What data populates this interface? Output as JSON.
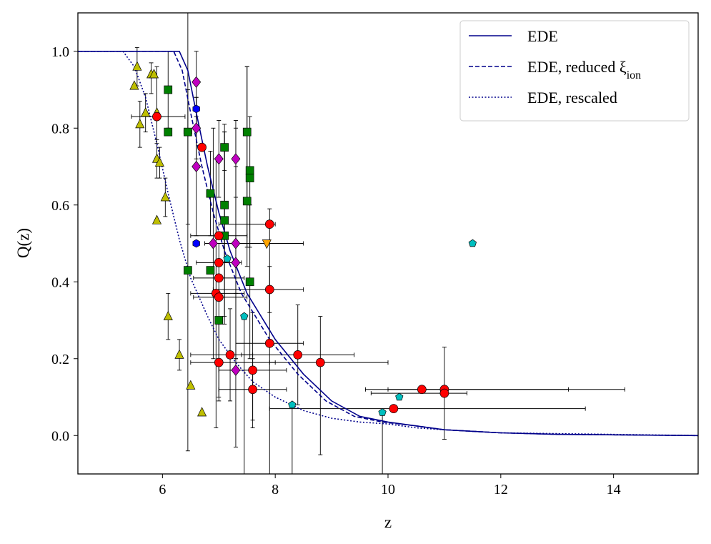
{
  "chart_data": {
    "type": "scatter",
    "xlabel": "z",
    "ylabel": "Q(z)",
    "xlim": [
      4.5,
      15.5
    ],
    "ylim": [
      -0.1,
      1.1
    ],
    "xticks": [
      "6",
      "8",
      "10",
      "12",
      "14"
    ],
    "yticks": [
      "0.0",
      "0.2",
      "0.4",
      "0.6",
      "0.8",
      "1.0"
    ],
    "grid": false,
    "legend_position": "top-right",
    "colors": {
      "line": "#00008b",
      "red": "#ff0000",
      "green": "#008000",
      "magenta": "#c000c0",
      "olive": "#bfbf00",
      "cyan": "#00bfbf",
      "blue": "#0000ff",
      "orange": "#ffa500"
    },
    "legend": [
      {
        "label": "EDE",
        "style": "solid"
      },
      {
        "label": "EDE, reduced ξ",
        "sub": "ion",
        "style": "dashed"
      },
      {
        "label": "EDE, rescaled",
        "style": "dotted"
      }
    ],
    "lines": [
      {
        "name": "EDE",
        "style": "solid",
        "x": [
          4.5,
          6.3,
          6.45,
          6.6,
          6.8,
          7.0,
          7.2,
          7.5,
          8.0,
          8.5,
          9.0,
          9.5,
          10.0,
          10.5,
          11.0,
          12.0,
          13.0,
          15.5
        ],
        "y": [
          1.0,
          1.0,
          0.95,
          0.84,
          0.7,
          0.58,
          0.48,
          0.37,
          0.25,
          0.16,
          0.09,
          0.05,
          0.035,
          0.025,
          0.015,
          0.007,
          0.003,
          0.0
        ]
      },
      {
        "name": "EDE, reduced ξ_ion",
        "style": "dashed",
        "x": [
          4.5,
          6.2,
          6.35,
          6.5,
          6.7,
          6.9,
          7.1,
          7.4,
          7.9,
          8.4,
          8.9,
          9.4,
          9.9,
          10.5,
          11.0,
          12.0,
          13.0,
          15.5
        ],
        "y": [
          1.0,
          1.0,
          0.95,
          0.84,
          0.7,
          0.58,
          0.48,
          0.37,
          0.25,
          0.16,
          0.09,
          0.05,
          0.035,
          0.025,
          0.015,
          0.007,
          0.003,
          0.0
        ]
      },
      {
        "name": "EDE, rescaled",
        "style": "dotted",
        "x": [
          4.5,
          5.3,
          5.5,
          5.7,
          5.9,
          6.1,
          6.3,
          6.5,
          6.8,
          7.0,
          7.3,
          7.6,
          8.0,
          8.5,
          9.0,
          9.5,
          10.0,
          10.5,
          11.0,
          12.0,
          15.5
        ],
        "y": [
          1.0,
          1.0,
          0.96,
          0.88,
          0.76,
          0.63,
          0.51,
          0.41,
          0.31,
          0.25,
          0.19,
          0.14,
          0.1,
          0.065,
          0.045,
          0.035,
          0.03,
          0.02,
          0.015,
          0.007,
          0.0
        ]
      }
    ],
    "points": [
      {
        "m": "tri",
        "c": "olive",
        "x": 5.5,
        "y": 0.91
      },
      {
        "m": "tri",
        "c": "olive",
        "x": 5.55,
        "y": 0.96,
        "ey": [
          0.05,
          0.05
        ]
      },
      {
        "m": "tri",
        "c": "olive",
        "x": 5.6,
        "y": 0.81,
        "ey": [
          0.06,
          0.06
        ]
      },
      {
        "m": "tri",
        "c": "olive",
        "x": 5.7,
        "y": 0.84,
        "ey": [
          0.05,
          0.05
        ]
      },
      {
        "m": "tri",
        "c": "olive",
        "x": 5.8,
        "y": 0.94,
        "ey": [
          0.05,
          0.03
        ]
      },
      {
        "m": "tri",
        "c": "olive",
        "x": 5.85,
        "y": 0.94
      },
      {
        "m": "tri",
        "c": "olive",
        "x": 5.9,
        "y": 0.72,
        "ey": [
          0.05,
          0.05
        ]
      },
      {
        "m": "tri",
        "c": "olive",
        "x": 5.9,
        "y": 0.56
      },
      {
        "m": "tri",
        "c": "olive",
        "x": 5.95,
        "y": 0.71,
        "ey": [
          0.04,
          0.04
        ]
      },
      {
        "m": "tri",
        "c": "olive",
        "x": 6.05,
        "y": 0.62,
        "ey": [
          0.05,
          0.05
        ]
      },
      {
        "m": "tri",
        "c": "olive",
        "x": 6.1,
        "y": 0.31,
        "ey": [
          0.06,
          0.06
        ]
      },
      {
        "m": "tri",
        "c": "olive",
        "x": 6.3,
        "y": 0.21,
        "ey": [
          0.04,
          0.04
        ]
      },
      {
        "m": "tri",
        "c": "olive",
        "x": 6.5,
        "y": 0.13
      },
      {
        "m": "tri",
        "c": "olive",
        "x": 6.7,
        "y": 0.06
      },
      {
        "m": "tri",
        "c": "olive",
        "x": 5.9,
        "y": 0.84,
        "ey": [
          0.08,
          0.12
        ]
      },
      {
        "m": "sq",
        "c": "green",
        "x": 6.1,
        "y": 0.9,
        "ey": [
          0.1,
          0.1
        ]
      },
      {
        "m": "sq",
        "c": "green",
        "x": 6.1,
        "y": 0.79
      },
      {
        "m": "sq",
        "c": "green",
        "x": 6.45,
        "y": 0.79,
        "ex": [
          0.07,
          0.07
        ],
        "ey": [
          0.24,
          0.31
        ]
      },
      {
        "m": "sq",
        "c": "green",
        "x": 6.45,
        "y": 0.43,
        "ey": [
          0.47,
          0.47
        ]
      },
      {
        "m": "sq",
        "c": "green",
        "x": 6.85,
        "y": 0.63,
        "ey": [
          0.11,
          0.11
        ]
      },
      {
        "m": "sq",
        "c": "green",
        "x": 6.85,
        "y": 0.43
      },
      {
        "m": "sq",
        "c": "green",
        "x": 7.0,
        "y": 0.3,
        "ey": [
          0.2,
          0.2
        ]
      },
      {
        "m": "sq",
        "c": "green",
        "x": 7.1,
        "y": 0.75,
        "ey": [
          0.06,
          0.06
        ]
      },
      {
        "m": "sq",
        "c": "green",
        "x": 7.1,
        "y": 0.6,
        "ey": [
          0.15,
          0.15
        ]
      },
      {
        "m": "sq",
        "c": "green",
        "x": 7.1,
        "y": 0.56,
        "ey": [
          0.25,
          0.23
        ]
      },
      {
        "m": "sq",
        "c": "green",
        "x": 7.1,
        "y": 0.52,
        "ey": [
          0.23,
          0.27
        ]
      },
      {
        "m": "sq",
        "c": "green",
        "x": 7.5,
        "y": 0.79,
        "ey": [
          0.3,
          0.17
        ]
      },
      {
        "m": "sq",
        "c": "green",
        "x": 7.5,
        "y": 0.61,
        "ey": [
          0.17,
          0.35
        ]
      },
      {
        "m": "sq",
        "c": "green",
        "x": 7.55,
        "y": 0.69,
        "ey": [
          0.2,
          0.14
        ]
      },
      {
        "m": "sq",
        "c": "green",
        "x": 7.55,
        "y": 0.67
      },
      {
        "m": "sq",
        "c": "green",
        "x": 7.55,
        "y": 0.4,
        "ey": [
          0.2,
          0.2
        ]
      },
      {
        "m": "dia",
        "c": "magenta",
        "x": 6.6,
        "y": 0.92,
        "ey": [
          0.09,
          0.08
        ]
      },
      {
        "m": "dia",
        "c": "magenta",
        "x": 6.6,
        "y": 0.8,
        "ey": [
          0.08,
          0.08
        ]
      },
      {
        "m": "dia",
        "c": "magenta",
        "x": 6.6,
        "y": 0.7,
        "ey": [
          0.18,
          0.18
        ]
      },
      {
        "m": "dia",
        "c": "magenta",
        "x": 6.9,
        "y": 0.5,
        "ey": [
          0.3,
          0.3
        ]
      },
      {
        "m": "dia",
        "c": "magenta",
        "x": 7.0,
        "y": 0.72,
        "ey": [
          0.1,
          0.1
        ]
      },
      {
        "m": "dia",
        "c": "magenta",
        "x": 7.3,
        "y": 0.72,
        "ey": [
          0.1,
          0.1
        ]
      },
      {
        "m": "dia",
        "c": "magenta",
        "x": 7.3,
        "y": 0.5,
        "ey": [
          0.3,
          0.3
        ]
      },
      {
        "m": "dia",
        "c": "magenta",
        "x": 7.3,
        "y": 0.45,
        "ey": [
          0.25,
          0.25
        ]
      },
      {
        "m": "dia",
        "c": "magenta",
        "x": 7.3,
        "y": 0.17,
        "ey": [
          0.2,
          0.2
        ]
      },
      {
        "m": "circ",
        "c": "red",
        "x": 5.9,
        "y": 0.83,
        "ex": [
          0.45,
          0.5
        ]
      },
      {
        "m": "circ",
        "c": "red",
        "x": 6.7,
        "y": 0.75
      },
      {
        "m": "circ",
        "c": "red",
        "x": 6.95,
        "y": 0.37,
        "ex": [
          0.45,
          0.5
        ],
        "ey": [
          0.35,
          0.35
        ]
      },
      {
        "m": "circ",
        "c": "red",
        "x": 7.0,
        "y": 0.52,
        "ex": [
          0.5,
          0.5
        ]
      },
      {
        "m": "circ",
        "c": "red",
        "x": 7.0,
        "y": 0.45,
        "ex": [
          0.4,
          0.4
        ]
      },
      {
        "m": "circ",
        "c": "red",
        "x": 7.0,
        "y": 0.41,
        "ex": [
          0.45,
          0.45
        ]
      },
      {
        "m": "circ",
        "c": "red",
        "x": 7.0,
        "y": 0.36,
        "ex": [
          0.45,
          0.5
        ]
      },
      {
        "m": "circ",
        "c": "red",
        "x": 7.0,
        "y": 0.19,
        "ex": [
          0.5,
          1.0
        ],
        "ey": [
          0.1,
          0.1
        ]
      },
      {
        "m": "circ",
        "c": "red",
        "x": 7.2,
        "y": 0.21,
        "ex": [
          0.7,
          0.4
        ],
        "ey": [
          0.12,
          0.12
        ]
      },
      {
        "m": "circ",
        "c": "red",
        "x": 7.6,
        "y": 0.17,
        "ex": [
          0.6,
          0.6
        ],
        "ey": [
          0.15,
          0.15
        ]
      },
      {
        "m": "circ",
        "c": "red",
        "x": 7.6,
        "y": 0.12,
        "ex": [
          0.6,
          0.6
        ],
        "ey": [
          0.08,
          0.08
        ]
      },
      {
        "m": "circ",
        "c": "red",
        "x": 7.9,
        "y": 0.55,
        "ex": [
          0.9,
          0.1
        ]
      },
      {
        "m": "circ",
        "c": "red",
        "x": 7.9,
        "y": 0.38,
        "ex": [
          1.0,
          0.6
        ],
        "ey": [
          0.06,
          0.06
        ]
      },
      {
        "m": "circ",
        "c": "red",
        "x": 7.9,
        "y": 0.24,
        "ex": [
          0.6,
          0.6
        ],
        "ey": [
          0.35,
          0.35
        ]
      },
      {
        "m": "circ",
        "c": "red",
        "x": 8.4,
        "y": 0.21,
        "ex": [
          1.0,
          1.0
        ],
        "ey": [
          0.13,
          0.13
        ]
      },
      {
        "m": "circ",
        "c": "red",
        "x": 8.8,
        "y": 0.19,
        "ex": [
          0.9,
          1.2
        ],
        "ey": [
          0.24,
          0.12
        ]
      },
      {
        "m": "circ",
        "c": "red",
        "x": 10.1,
        "y": 0.07,
        "ex": [
          2.2,
          3.4
        ]
      },
      {
        "m": "circ",
        "c": "red",
        "x": 10.6,
        "y": 0.12,
        "ex": [
          1.0,
          3.6
        ]
      },
      {
        "m": "circ",
        "c": "red",
        "x": 11.0,
        "y": 0.12,
        "ex": [
          1.0,
          2.2
        ],
        "ey": [
          0.13,
          0.11
        ]
      },
      {
        "m": "circ",
        "c": "red",
        "x": 11.0,
        "y": 0.11,
        "ex": [
          1.3,
          0.4
        ]
      },
      {
        "m": "pent",
        "c": "cyan",
        "x": 7.15,
        "y": 0.46
      },
      {
        "m": "pent",
        "c": "cyan",
        "x": 7.45,
        "y": 0.31,
        "ey": [
          0.46,
          0.0
        ]
      },
      {
        "m": "pent",
        "c": "cyan",
        "x": 8.3,
        "y": 0.08,
        "ey": [
          0.2,
          0.0
        ]
      },
      {
        "m": "pent",
        "c": "cyan",
        "x": 9.9,
        "y": 0.06,
        "ey": [
          0.2,
          0.0
        ]
      },
      {
        "m": "pent",
        "c": "cyan",
        "x": 10.2,
        "y": 0.1
      },
      {
        "m": "pent",
        "c": "cyan",
        "x": 11.5,
        "y": 0.5
      },
      {
        "m": "hex",
        "c": "blue",
        "x": 6.6,
        "y": 0.85
      },
      {
        "m": "hex",
        "c": "blue",
        "x": 6.6,
        "y": 0.5
      },
      {
        "m": "tridown",
        "c": "orange",
        "x": 7.85,
        "y": 0.5,
        "ex": [
          1.1,
          0.65
        ]
      }
    ]
  }
}
